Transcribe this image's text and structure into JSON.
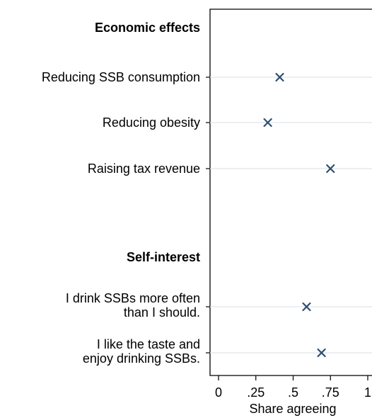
{
  "chart_data": {
    "type": "scatter",
    "xlabel": "Share agreeing",
    "xlim": [
      0,
      1
    ],
    "xticks": [
      "0",
      ".25",
      ".5",
      ".75",
      "1"
    ],
    "xtick_values": [
      0,
      0.25,
      0.5,
      0.75,
      1
    ],
    "grid": "horizontal",
    "marker": "x",
    "marker_color": "#2e4d6e",
    "groups": [
      {
        "heading": "Economic effects",
        "items": [
          {
            "label": [
              "Reducing SSB consumption"
            ],
            "value": 0.41
          },
          {
            "label": [
              "Reducing obesity"
            ],
            "value": 0.33
          },
          {
            "label": [
              "Raising tax revenue"
            ],
            "value": 0.75
          }
        ]
      },
      {
        "heading": "Self-interest",
        "items": [
          {
            "label": [
              "I drink SSBs more often",
              "than I should."
            ],
            "value": 0.59
          },
          {
            "label": [
              "I like the taste and",
              "enjoy drinking SSBs."
            ],
            "value": 0.69
          }
        ]
      }
    ]
  }
}
